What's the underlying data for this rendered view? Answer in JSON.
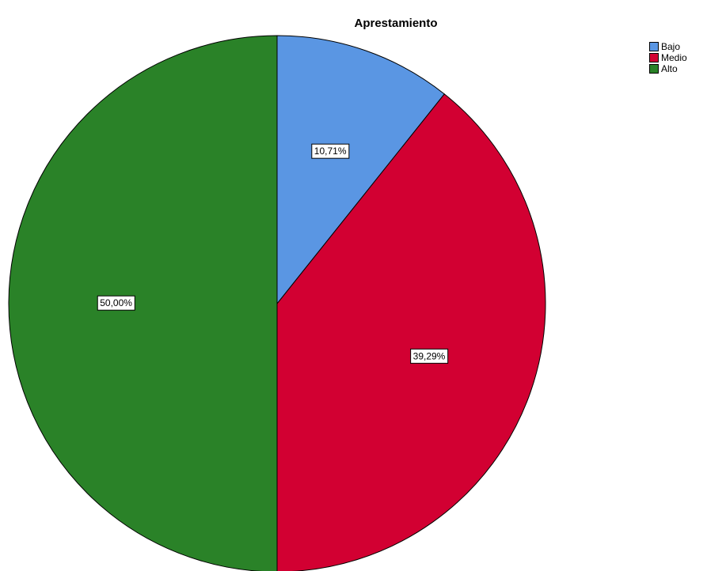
{
  "chart_data": {
    "type": "pie",
    "title": "Aprestamiento",
    "categories": [
      "Bajo",
      "Medio",
      "Alto"
    ],
    "values": [
      10.71,
      39.29,
      50.0
    ],
    "value_labels": [
      "10,71%",
      "39,29%",
      "50,00%"
    ],
    "colors": [
      "#5a96e3",
      "#d20032",
      "#2a8228"
    ],
    "legend": "top-right"
  }
}
